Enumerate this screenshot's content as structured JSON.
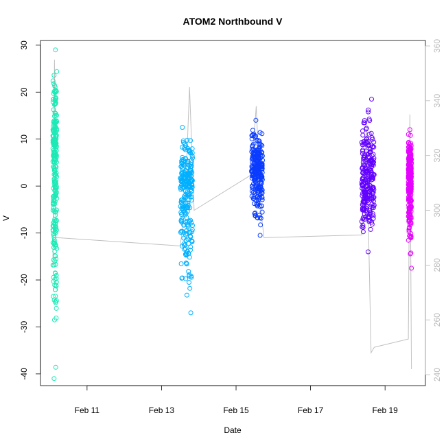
{
  "chart_data": {
    "type": "scatter",
    "title": "ATOM2 Northbound V",
    "xlabel": "Date",
    "ylabel": "V",
    "x_ticks": [
      "Feb 11",
      "Feb 13",
      "Feb 15",
      "Feb 17",
      "Feb 19"
    ],
    "x_tick_dates": [
      "2020-02-11",
      "2020-02-13",
      "2020-02-15",
      "2020-02-17",
      "2020-02-19"
    ],
    "xlim": [
      "2020-02-09T18:00",
      "2020-02-20T02:00"
    ],
    "y_ticks": [
      30,
      20,
      10,
      0,
      -10,
      -20,
      -30,
      -40
    ],
    "ylim": [
      -42.5,
      31
    ],
    "y2_ticks": [
      360,
      340,
      320,
      300,
      280,
      260,
      240
    ],
    "y2lim": [
      236,
      362
    ],
    "grid": false,
    "legend": "none",
    "colors": {
      "segment1": "#1de9b6",
      "segment2": "#00b0ff",
      "segment3": "#0a3cff",
      "segment4": "#6200ff",
      "segment5": "#e600ff",
      "secondary_line": "#c0c0c0",
      "secondary_axis_text": "#bbbbbb"
    },
    "series": [
      {
        "time_range": [
          "2020-02-10T02:00",
          "2020-02-10T04:30"
        ],
        "v_min": -41,
        "v_max": 29,
        "v_median": 5
      },
      {
        "time_range": [
          "2020-02-13T12:00",
          "2020-02-13T20:00"
        ],
        "v_min": -27,
        "v_max": 12.5,
        "v_median": 0
      },
      {
        "time_range": [
          "2020-02-15T10:00",
          "2020-02-15T17:00"
        ],
        "v_min": -10.5,
        "v_max": 14,
        "v_median": 3
      },
      {
        "time_range": [
          "2020-02-18T09:00",
          "2020-02-18T17:00"
        ],
        "v_min": -14,
        "v_max": 18.5,
        "v_median": 1
      },
      {
        "time_range": [
          "2020-02-19T15:00",
          "2020-02-19T17:00"
        ],
        "v_min": -17.5,
        "v_max": 12,
        "v_median": 2
      }
    ],
    "secondary_series": {
      "axis": "right",
      "x": [
        "2020-02-10T02:00",
        "2020-02-10T03:00",
        "2020-02-10T04:00",
        "2020-02-10T05:00",
        "2020-02-13T12:00",
        "2020-02-13T15:00",
        "2020-02-13T18:00",
        "2020-02-13T21:00",
        "2020-02-15T10:00",
        "2020-02-15T13:00",
        "2020-02-15T16:00",
        "2020-02-15T18:00",
        "2020-02-18T09:00",
        "2020-02-18T12:00",
        "2020-02-18T15:00",
        "2020-02-18T17:00",
        "2020-02-19T15:00",
        "2020-02-19T16:00",
        "2020-02-19T17:00"
      ],
      "y": [
        280,
        355,
        290,
        290,
        287,
        300,
        345,
        300,
        313,
        338,
        300,
        290,
        291,
        330,
        248,
        250,
        253,
        335,
        242
      ]
    }
  }
}
